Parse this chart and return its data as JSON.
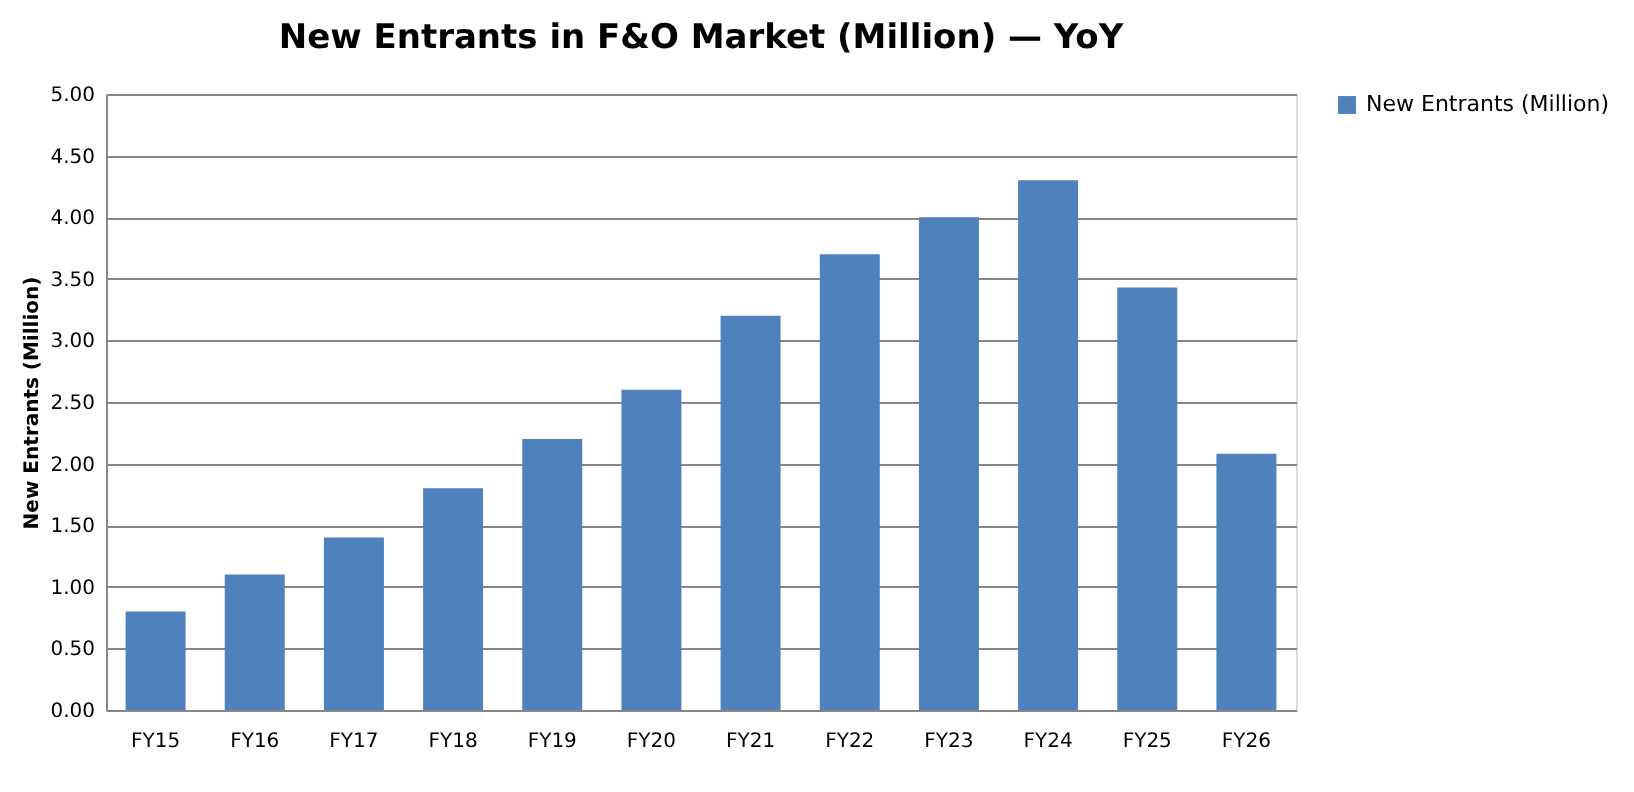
{
  "chart_data": {
    "type": "bar",
    "title": "New Entrants in F&O Market (Million) — YoY",
    "ylabel": "New Entrants (Million)",
    "categories": [
      "FY15",
      "FY16",
      "FY17",
      "FY18",
      "FY19",
      "FY20",
      "FY21",
      "FY22",
      "FY23",
      "FY24",
      "FY25",
      "FY26"
    ],
    "series": [
      {
        "name": "New Entrants (Million)",
        "color": "#4f81bd",
        "values": [
          0.8,
          1.1,
          1.4,
          1.8,
          2.2,
          2.6,
          3.2,
          3.7,
          4.0,
          4.3,
          3.43,
          2.08
        ]
      }
    ],
    "ylim": [
      0,
      5
    ],
    "yticks": [
      {
        "value": 0,
        "label": "0.00"
      },
      {
        "value": 0.5,
        "label": "0.50"
      },
      {
        "value": 1,
        "label": "1.00"
      },
      {
        "value": 1.5,
        "label": "1.50"
      },
      {
        "value": 2,
        "label": "2.00"
      },
      {
        "value": 2.5,
        "label": "2.50"
      },
      {
        "value": 3,
        "label": "3.00"
      },
      {
        "value": 3.5,
        "label": "3.50"
      },
      {
        "value": 4,
        "label": "4.00"
      },
      {
        "value": 4.5,
        "label": "4.50"
      },
      {
        "value": 5,
        "label": "5.00"
      }
    ],
    "grid": "y",
    "legend": "right"
  }
}
